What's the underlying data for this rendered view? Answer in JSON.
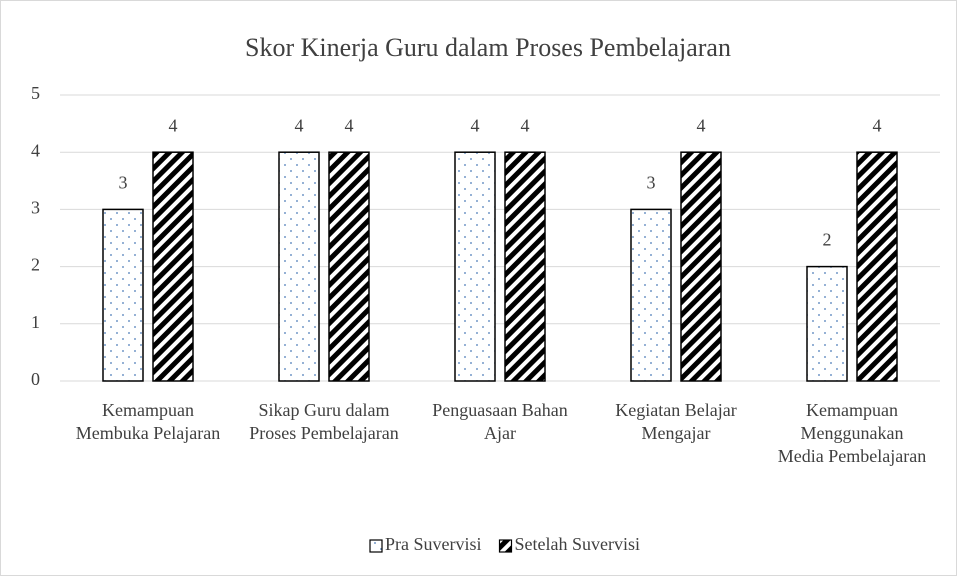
{
  "chart_data": {
    "type": "bar",
    "title": "Skor Kinerja Guru dalam Proses Pembelajaran",
    "categories": [
      "Kemampuan Membuka Pelajaran",
      "Sikap Guru dalam Proses Pembelajaran",
      "Penguasaan Bahan Ajar",
      "Kegiatan Belajar Mengajar",
      "Kemampuan Menggunakan Media Pembelajaran"
    ],
    "series": [
      {
        "name": "Pra Suvervisi",
        "color": "#ffffff",
        "pattern": "dots",
        "values": [
          3,
          4,
          4,
          3,
          2
        ]
      },
      {
        "name": "Setelah Suvervisi",
        "color": "#000000",
        "pattern": "diagonal",
        "values": [
          4,
          4,
          4,
          4,
          4
        ]
      }
    ],
    "ylim": [
      0,
      5
    ],
    "yticks": [
      0,
      1,
      2,
      3,
      4,
      5
    ],
    "grid": true,
    "legend": "bottom"
  }
}
